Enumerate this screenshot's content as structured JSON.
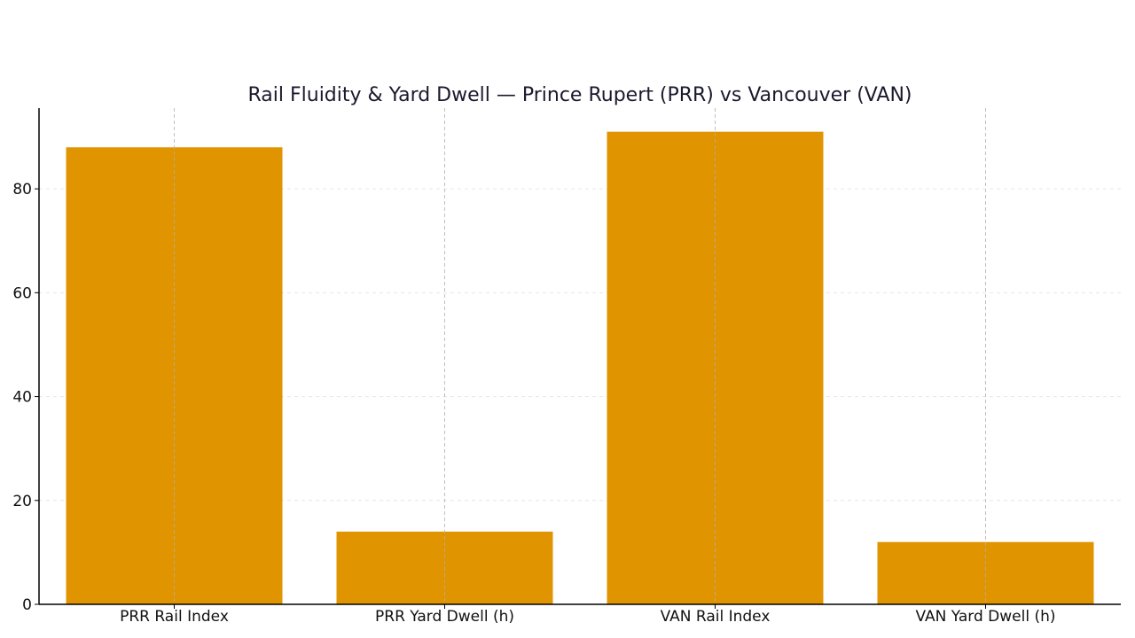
{
  "chart_data": {
    "type": "bar",
    "title": "Rail Fluidity & Yard Dwell — Prince Rupert (PRR) vs Vancouver (VAN)",
    "xlabel": "",
    "ylabel": "",
    "categories": [
      "PRR Rail Index",
      "PRR Yard Dwell (h)",
      "VAN Rail Index",
      "VAN Yard Dwell (h)"
    ],
    "values": [
      88,
      14,
      91,
      12
    ],
    "ylim": [
      0,
      95.55
    ],
    "yticks": [
      0,
      20,
      40,
      60,
      80
    ],
    "grid": true,
    "bar_color": "#E09400",
    "grid_color": "#d9d9d9",
    "axis_color": "#000000"
  }
}
